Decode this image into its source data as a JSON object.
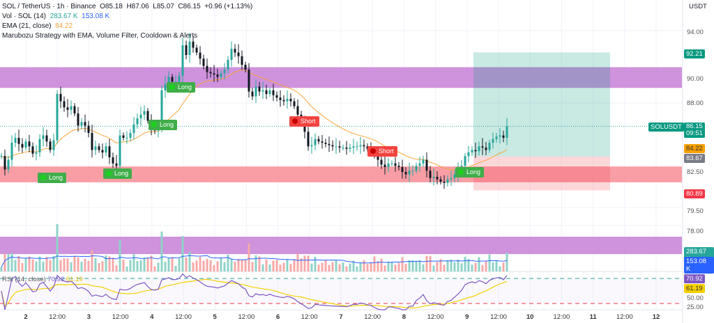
{
  "header": {
    "symbol_line": "SOL / TetherUS · 1h · Binance",
    "open": "O85.18",
    "high": "H87.06",
    "low": "L85.07",
    "close": "C86.15",
    "change": "+0.96 (+1.13%)",
    "vol_label": "Vol · SOL (14)",
    "vol_value": "283.67 K",
    "vol_ma": "153.08 K",
    "ema_label": "EMA (21, close)",
    "ema_value": "84.22",
    "strategy": "Marubozu Strategy with EMA, Volume Filter, Cooldown & Alerts",
    "rsi_label": "RSI (14, close)",
    "rsi_value": "70.92",
    "rsi_ma": "61.19"
  },
  "axis": {
    "currency": "USDT",
    "price_ticks": [
      "94.00",
      "90.00",
      "88.00",
      "82.50",
      "79.50",
      "78.00",
      "50.00",
      "25.00"
    ],
    "x_ticks": [
      "2",
      "12:00",
      "3",
      "12:00",
      "4",
      "12:00",
      "5",
      "12:00",
      "6",
      "12:00",
      "7",
      "12:00",
      "8",
      "12:00",
      "9",
      "12:00",
      "10",
      "12:00",
      "11",
      "12:00",
      "12"
    ]
  },
  "badges": {
    "target": "92.21",
    "last": "86.15",
    "countdown": "09:51",
    "symbol": "SOLUSDT",
    "ema": "84.22",
    "entry": "83.67",
    "stop": "80.89",
    "vol": "283.67 K",
    "vol_ma": "153.08 K",
    "rsi": "70.92",
    "rsi_ma": "61.19"
  },
  "signals": [
    {
      "label": "Long",
      "type": "long"
    },
    {
      "label": "Long",
      "type": "long"
    },
    {
      "label": "Long",
      "type": "long"
    },
    {
      "label": "Long",
      "type": "long"
    },
    {
      "label": "Short",
      "type": "short"
    },
    {
      "label": "Short",
      "type": "short"
    },
    {
      "label": "Long",
      "type": "long"
    }
  ],
  "colors": {
    "up": "#26a69a",
    "down": "#131722",
    "ema": "#f7a53a",
    "zone_supply": "#c77fd6",
    "zone_demand": "#f7868f",
    "rsi": "#7e57c2",
    "rsi_ma": "#f5d000"
  },
  "chart_data": {
    "type": "candlestick",
    "title": "SOL / TetherUS · 1h · Binance",
    "ylim": [
      77,
      95
    ],
    "zones": [
      {
        "name": "supply",
        "from": 89.3,
        "to": 91.0
      },
      {
        "name": "demand",
        "from": 81.55,
        "to": 82.85
      }
    ],
    "position": {
      "target": 92.21,
      "entry": 83.67,
      "stop": 80.89
    },
    "ema_period": 21,
    "rsi_period": 14,
    "closes": [
      83.7,
      82.6,
      83.4,
      84.8,
      85.2,
      84.7,
      84.4,
      84.9,
      84.5,
      83.9,
      84.0,
      85.1,
      85.4,
      84.9,
      84.2,
      85.0,
      88.8,
      88.2,
      87.7,
      87.5,
      87.8,
      87.2,
      86.2,
      86.5,
      86.2,
      85.6,
      84.2,
      84.5,
      84.2,
      84.0,
      84.5,
      83.6,
      83.1,
      82.9,
      85.4,
      85.2,
      85.2,
      85.6,
      86.3,
      86.8,
      87.1,
      87.4,
      86.6,
      85.9,
      85.8,
      86.0,
      89.1,
      89.6,
      90.2,
      89.8,
      89.8,
      90.3,
      92.8,
      92.0,
      93.1,
      92.6,
      92.2,
      91.7,
      91.1,
      90.6,
      90.5,
      90.4,
      90.2,
      90.5,
      90.8,
      91.6,
      92.5,
      92.2,
      91.9,
      91.2,
      90.8,
      89.0,
      88.6,
      89.4,
      89.0,
      89.1,
      88.8,
      89.1,
      88.7,
      88.5,
      88.3,
      88.2,
      88.4,
      88.2,
      87.8,
      87.1,
      86.4,
      85.7,
      84.5,
      84.6,
      85.1,
      84.9,
      84.8,
      84.7,
      84.6,
      84.5,
      84.5,
      84.4,
      84.4,
      84.3,
      84.4,
      84.5,
      84.5,
      84.6,
      84.5,
      84.3,
      84.2,
      83.8,
      83.4,
      83.0,
      82.8,
      83.1,
      83.1,
      82.9,
      82.8,
      82.4,
      82.2,
      82.5,
      82.5,
      82.9,
      83.1,
      83.4,
      82.5,
      81.9,
      82.0,
      81.8,
      81.6,
      81.5,
      81.8,
      81.9,
      82.2,
      82.5,
      82.9,
      83.7,
      84.0,
      84.2,
      84.1,
      84.5,
      84.4,
      84.2,
      84.8,
      85.1,
      85.3,
      85.4,
      85.2,
      86.15
    ]
  }
}
